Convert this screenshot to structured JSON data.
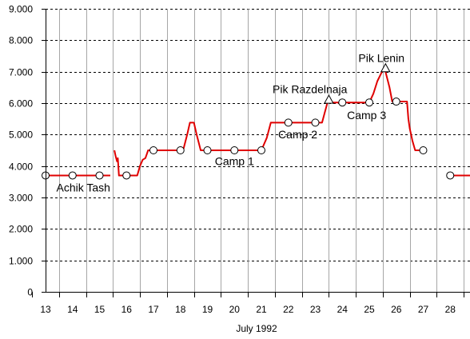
{
  "chart_data": {
    "type": "line",
    "title": "",
    "xlabel": "July 1992",
    "ylabel": "",
    "xlim": [
      13,
      28.9
    ],
    "ylim": [
      0,
      9000
    ],
    "y_ticks": [
      {
        "value": 0,
        "label": "0"
      },
      {
        "value": 1000,
        "label": "1.000"
      },
      {
        "value": 2000,
        "label": "2.000"
      },
      {
        "value": 3000,
        "label": "3.000"
      },
      {
        "value": 4000,
        "label": "4.000"
      },
      {
        "value": 5000,
        "label": "5.000"
      },
      {
        "value": 6000,
        "label": "6.000"
      },
      {
        "value": 7000,
        "label": "7.000"
      },
      {
        "value": 8000,
        "label": "8.000"
      },
      {
        "value": 9000,
        "label": "9.000"
      }
    ],
    "x_ticks": [
      {
        "value": 13,
        "label": "13"
      },
      {
        "value": 14,
        "label": "14"
      },
      {
        "value": 15,
        "label": "15"
      },
      {
        "value": 16,
        "label": "16"
      },
      {
        "value": 17,
        "label": "17"
      },
      {
        "value": 18,
        "label": "18"
      },
      {
        "value": 19,
        "label": "19"
      },
      {
        "value": 20,
        "label": "20"
      },
      {
        "value": 21,
        "label": "21"
      },
      {
        "value": 22,
        "label": "22"
      },
      {
        "value": 23,
        "label": "23"
      },
      {
        "value": 24,
        "label": "24"
      },
      {
        "value": 25,
        "label": "25"
      },
      {
        "value": 26,
        "label": "26"
      },
      {
        "value": 27,
        "label": "27"
      },
      {
        "value": 28,
        "label": "28"
      }
    ],
    "grid": {
      "vertical": true,
      "horizontal": true,
      "horizontal_style": "dashed"
    },
    "line_color": "#e00000",
    "line_segments": [
      [
        [
          13.0,
          3700
        ],
        [
          15.4,
          3700
        ]
      ],
      [
        [
          15.55,
          4500
        ],
        [
          15.6,
          4300
        ],
        [
          15.65,
          4150
        ],
        [
          15.68,
          4250
        ],
        [
          15.72,
          3700
        ],
        [
          15.8,
          3700
        ],
        [
          16.0,
          3700
        ],
        [
          16.4,
          3700
        ],
        [
          16.5,
          4000
        ],
        [
          16.6,
          4200
        ],
        [
          16.7,
          4250
        ],
        [
          16.8,
          4500
        ],
        [
          17.0,
          4500
        ],
        [
          18.1,
          4500
        ],
        [
          18.25,
          5000
        ],
        [
          18.35,
          5380
        ],
        [
          18.5,
          5380
        ],
        [
          18.6,
          5000
        ],
        [
          18.75,
          4500
        ],
        [
          19.0,
          4500
        ],
        [
          21.0,
          4500
        ],
        [
          21.2,
          4900
        ],
        [
          21.35,
          5380
        ],
        [
          22.0,
          5380
        ],
        [
          23.0,
          5380
        ],
        [
          23.25,
          5380
        ],
        [
          23.35,
          5700
        ],
        [
          23.45,
          6020
        ],
        [
          24.0,
          6020
        ],
        [
          25.0,
          6020
        ],
        [
          25.15,
          6300
        ],
        [
          25.3,
          6700
        ],
        [
          25.5,
          7050
        ],
        [
          25.6,
          7000
        ],
        [
          25.75,
          6500
        ],
        [
          25.85,
          6050
        ],
        [
          26.0,
          6050
        ],
        [
          26.4,
          6050
        ],
        [
          26.45,
          5500
        ],
        [
          26.5,
          5200
        ],
        [
          26.6,
          4800
        ],
        [
          26.7,
          4500
        ],
        [
          27.0,
          4500
        ]
      ],
      [
        [
          28.0,
          3700
        ],
        [
          28.75,
          3700
        ],
        [
          28.85,
          3600
        ],
        [
          28.9,
          3650
        ]
      ]
    ],
    "camp_points": [
      {
        "x": 13.0,
        "y": 3700
      },
      {
        "x": 14.0,
        "y": 3700
      },
      {
        "x": 15.0,
        "y": 3700
      },
      {
        "x": 16.0,
        "y": 3700
      },
      {
        "x": 17.0,
        "y": 4500
      },
      {
        "x": 18.0,
        "y": 4500
      },
      {
        "x": 19.0,
        "y": 4500
      },
      {
        "x": 20.0,
        "y": 4500
      },
      {
        "x": 21.0,
        "y": 4500
      },
      {
        "x": 22.0,
        "y": 5380
      },
      {
        "x": 23.0,
        "y": 5380
      },
      {
        "x": 24.0,
        "y": 6020
      },
      {
        "x": 25.0,
        "y": 6020
      },
      {
        "x": 26.0,
        "y": 6050
      },
      {
        "x": 27.0,
        "y": 4500
      },
      {
        "x": 28.0,
        "y": 3700
      }
    ],
    "summit_points": [
      {
        "x": 23.5,
        "y": 6100
      },
      {
        "x": 25.6,
        "y": 7100
      }
    ],
    "annotations": [
      {
        "text": "Achik Tash",
        "x": 14.4,
        "y": 3320
      },
      {
        "text": "Camp 1",
        "x": 20.0,
        "y": 4160
      },
      {
        "text": "Camp 2",
        "x": 22.35,
        "y": 5010
      },
      {
        "text": "Camp 3",
        "x": 24.9,
        "y": 5620
      },
      {
        "text": "Pik Razdelnaja",
        "x": 22.8,
        "y": 6440
      },
      {
        "text": "Pik Lenin",
        "x": 25.45,
        "y": 7440
      }
    ]
  }
}
